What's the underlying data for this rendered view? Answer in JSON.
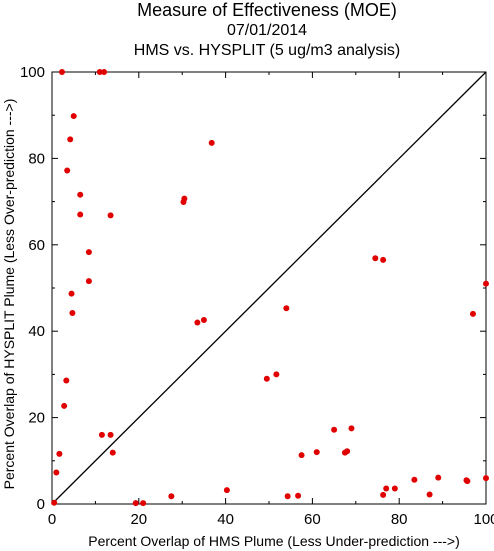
{
  "chart_data": {
    "type": "scatter",
    "title": "Measure of Effectiveness (MOE)",
    "subtitle": "07/01/2014",
    "subtitle2": "HMS vs. HYSPLIT  (5 ug/m3 analysis)",
    "xlabel": "Percent Overlap of HMS Plume (Less Under-prediction --->)",
    "ylabel": "Percent Overlap of HYSPLIT Plume (Less Over-prediction --->)",
    "xlim": [
      0,
      100
    ],
    "ylim": [
      0,
      100
    ],
    "xticks": [
      "0",
      "20",
      "40",
      "60",
      "80",
      "100"
    ],
    "yticks": [
      "0",
      "20",
      "40",
      "60",
      "80",
      "100"
    ],
    "grid": false,
    "reference_line": "diagonal y = x",
    "point_color": "#e00000",
    "points": [
      [
        2.3,
        100
      ],
      [
        11,
        100
      ],
      [
        12,
        100
      ],
      [
        5,
        89.8
      ],
      [
        4.2,
        84.4
      ],
      [
        3.5,
        77.2
      ],
      [
        6.5,
        71.6
      ],
      [
        6.5,
        67
      ],
      [
        13.5,
        66.8
      ],
      [
        8.5,
        58.3
      ],
      [
        8.5,
        51.6
      ],
      [
        4.5,
        48.7
      ],
      [
        4.7,
        44.2
      ],
      [
        30.5,
        70.7
      ],
      [
        30.3,
        69.9
      ],
      [
        36.8,
        83.6
      ],
      [
        33.5,
        42
      ],
      [
        35,
        42.6
      ],
      [
        54,
        45.3
      ],
      [
        74.5,
        56.9
      ],
      [
        76.3,
        56.5
      ],
      [
        100,
        51
      ],
      [
        97,
        44
      ],
      [
        3.3,
        28.6
      ],
      [
        2.8,
        22.7
      ],
      [
        1.7,
        11.6
      ],
      [
        1,
        7.3
      ],
      [
        0.5,
        0.3
      ],
      [
        11.5,
        16
      ],
      [
        13.5,
        16
      ],
      [
        14,
        11.9
      ],
      [
        19.3,
        0.2
      ],
      [
        21,
        0.2
      ],
      [
        27.5,
        1.8
      ],
      [
        40.3,
        3.2
      ],
      [
        49.5,
        29
      ],
      [
        51.7,
        30
      ],
      [
        54.3,
        1.8
      ],
      [
        56.7,
        1.9
      ],
      [
        57.5,
        11.3
      ],
      [
        61,
        12
      ],
      [
        65,
        17.2
      ],
      [
        67.5,
        11.9
      ],
      [
        68,
        12.2
      ],
      [
        69,
        17.5
      ],
      [
        76.3,
        2.1
      ],
      [
        77,
        3.6
      ],
      [
        79,
        3.6
      ],
      [
        83.5,
        5.6
      ],
      [
        87,
        2.2
      ],
      [
        89,
        6.1
      ],
      [
        95.5,
        5.5
      ],
      [
        95.7,
        5.3
      ],
      [
        100,
        6
      ]
    ]
  }
}
